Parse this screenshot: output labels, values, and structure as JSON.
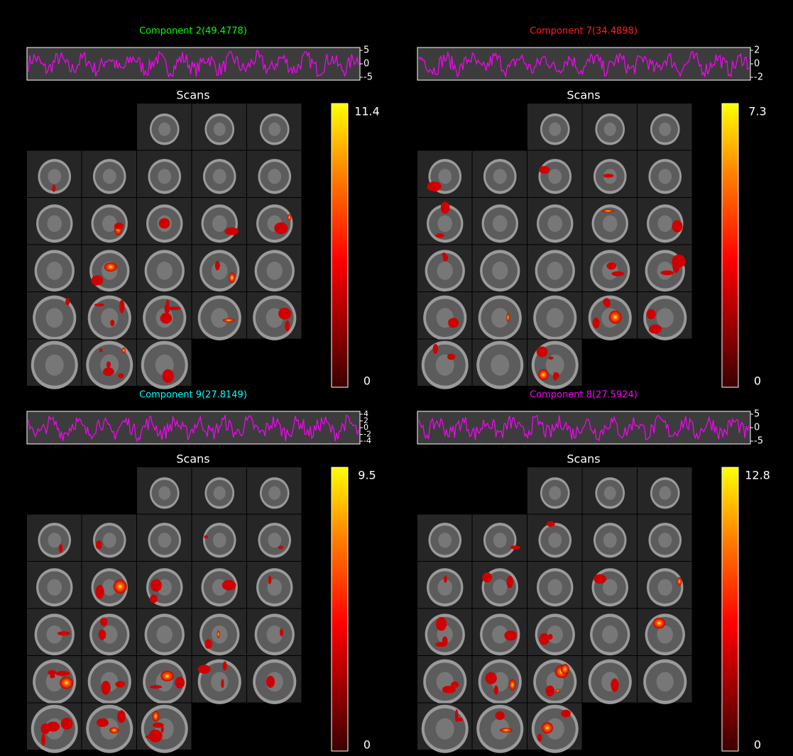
{
  "panels": [
    {
      "title": "Component 2(49.4778)",
      "timecourse_ticks": [
        5,
        0,
        -5
      ],
      "xlabel": "Scans",
      "colorbar_max": 11.4,
      "colorbar_min": 0
    },
    {
      "title": "Component 7(34.4898)",
      "timecourse_ticks": [
        2,
        0,
        -2
      ],
      "xlabel": "Scans",
      "colorbar_max": 7.3,
      "colorbar_min": 0
    },
    {
      "title": "Component 9(27.8149)",
      "timecourse_ticks": [
        4,
        2,
        0,
        -2,
        -4
      ],
      "xlabel": "Scans",
      "colorbar_max": 9.5,
      "colorbar_min": 0
    },
    {
      "title": "Component 8(27.5924)",
      "timecourse_ticks": [
        5,
        0,
        -5
      ],
      "xlabel": "Scans",
      "colorbar_max": 12.8,
      "colorbar_min": 0
    }
  ]
}
